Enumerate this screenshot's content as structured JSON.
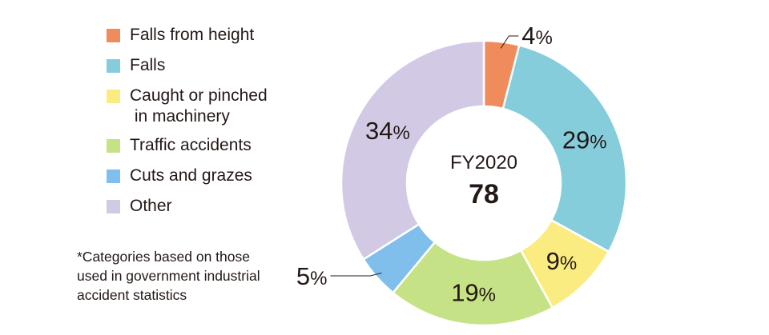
{
  "chart_data": {
    "type": "donut",
    "center_label": "FY2020",
    "center_value": "78",
    "slices": [
      {
        "name": "Falls from height",
        "value": 4,
        "label": "4",
        "color": "#F08B5C"
      },
      {
        "name": "Falls",
        "value": 29,
        "label": "29",
        "color": "#86CDDC"
      },
      {
        "name": "Caught or pinched\nin machinery",
        "value": 9,
        "label": "9",
        "color": "#FBEC82"
      },
      {
        "name": "Traffic accidents",
        "value": 19,
        "label": "19",
        "color": "#C5E386"
      },
      {
        "name": "Cuts and grazes",
        "value": 5,
        "label": "5",
        "color": "#80BEEC"
      },
      {
        "name": "Other",
        "value": 34,
        "label": "34",
        "color": "#D2C9E4"
      }
    ],
    "unit_symbol": "%",
    "legend_position": "left"
  },
  "footnote": "*Categories based on those\n used in government industrial\n accident statistics"
}
